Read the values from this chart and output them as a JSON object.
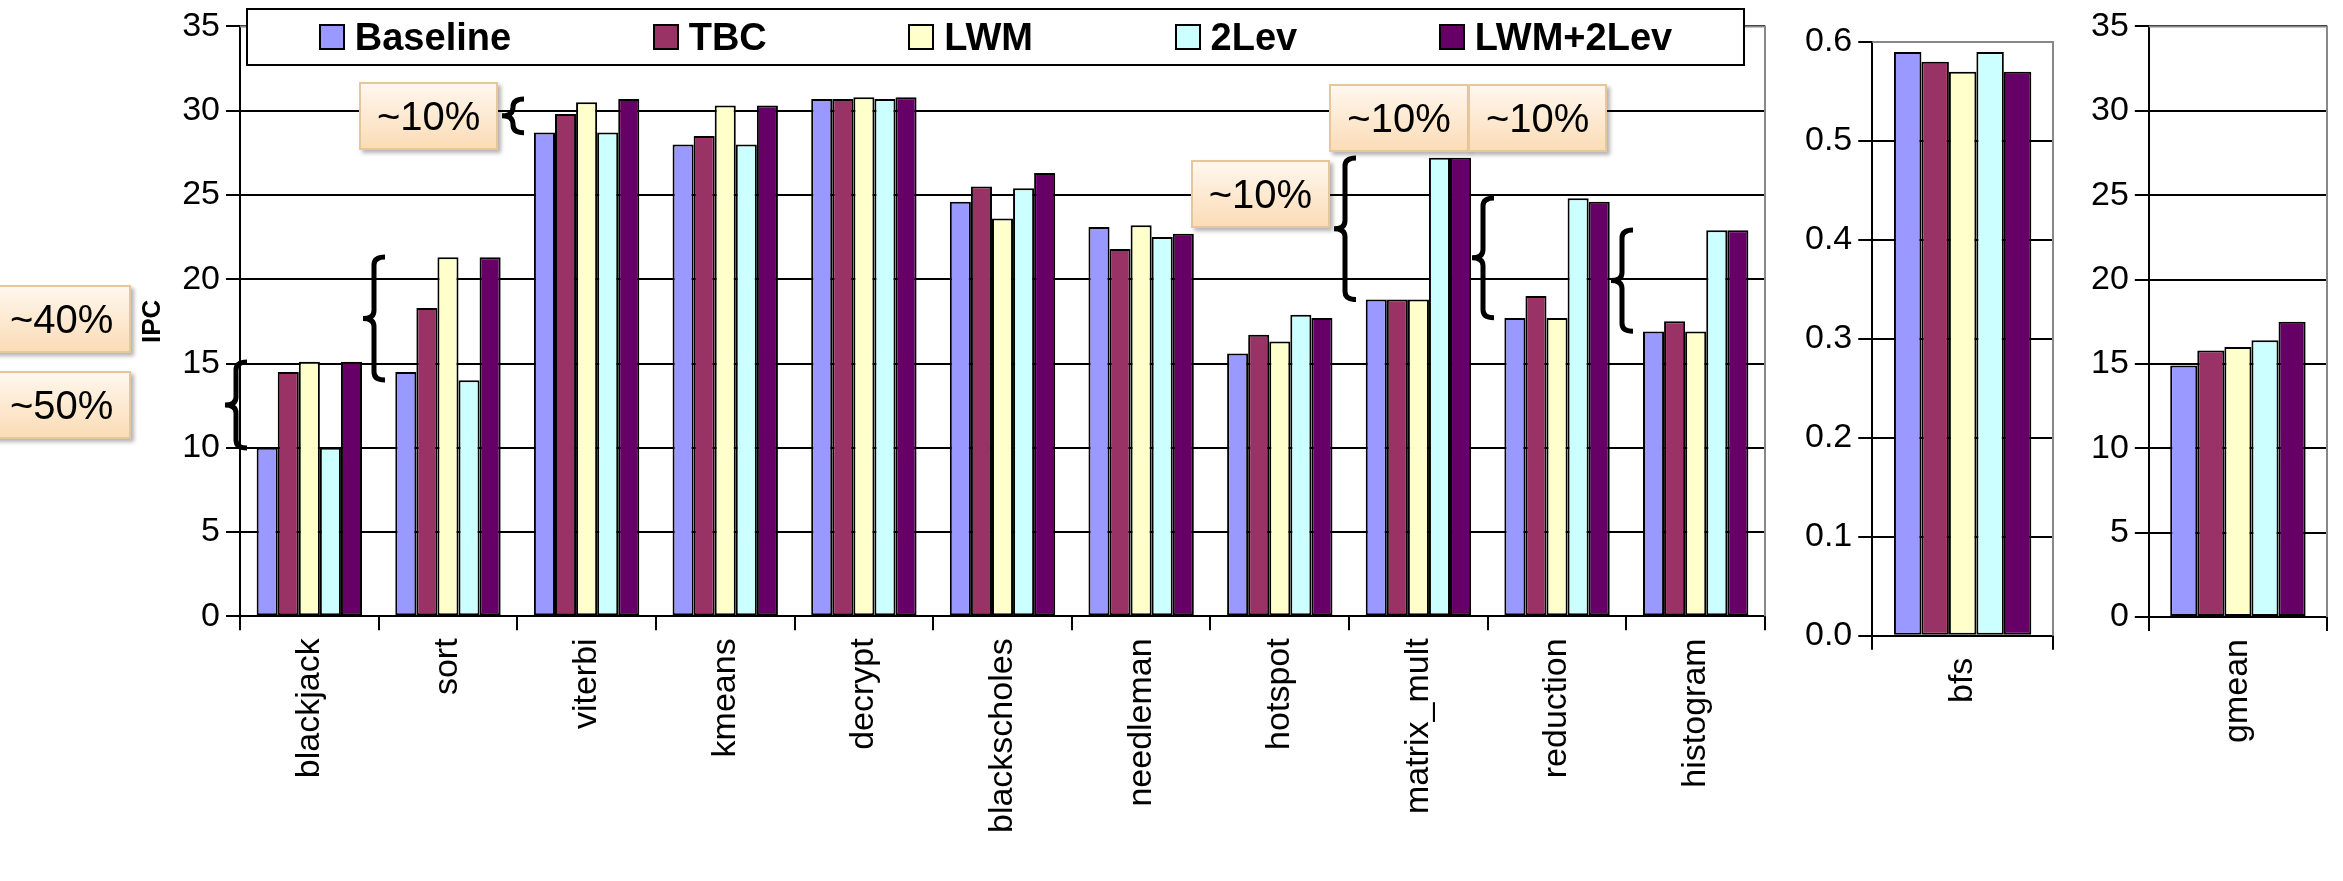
{
  "chart_data": [
    {
      "type": "bar",
      "ylabel": "IPC",
      "categories": [
        "blackjack",
        "sort",
        "viterbi",
        "kmeans",
        "decrypt",
        "blackscholes",
        "needleman",
        "hotspot",
        "matrix_mult",
        "reduction",
        "histogram"
      ],
      "series": [
        {
          "name": "Baseline",
          "color": "#9999ff",
          "values": [
            10.0,
            14.5,
            28.7,
            28.0,
            30.7,
            24.6,
            23.1,
            15.6,
            18.8,
            17.7,
            16.9
          ]
        },
        {
          "name": "TBC",
          "color": "#993366",
          "values": [
            14.5,
            18.3,
            29.8,
            28.5,
            30.7,
            25.5,
            21.8,
            16.7,
            18.8,
            19.0,
            17.5
          ]
        },
        {
          "name": "LWM",
          "color": "#ffffcc",
          "values": [
            15.1,
            21.3,
            30.5,
            30.3,
            30.8,
            23.6,
            23.2,
            16.3,
            18.8,
            17.7,
            16.9
          ]
        },
        {
          "name": "2Lev",
          "color": "#ccffff",
          "values": [
            10.0,
            14.0,
            28.7,
            28.0,
            30.7,
            25.4,
            22.5,
            17.9,
            27.2,
            24.8,
            22.9
          ]
        },
        {
          "name": "LWM+2Lev",
          "color": "#660066",
          "values": [
            15.1,
            21.3,
            30.7,
            30.3,
            30.8,
            26.3,
            22.7,
            17.7,
            27.2,
            24.6,
            22.9
          ]
        }
      ],
      "ylim": [
        0,
        35
      ],
      "yticks": [
        0,
        5,
        10,
        15,
        20,
        25,
        30,
        35
      ],
      "grid": "y",
      "legend": "top",
      "annotations": [
        "~50%",
        "~40%",
        "~10%",
        "~10%",
        "~10%",
        "~10%"
      ]
    },
    {
      "type": "bar",
      "categories": [
        "bfs"
      ],
      "series": [
        {
          "color": "#9999ff",
          "values": [
            0.59
          ]
        },
        {
          "color": "#993366",
          "values": [
            0.58
          ]
        },
        {
          "color": "#ffffcc",
          "values": [
            0.57
          ]
        },
        {
          "color": "#ccffff",
          "values": [
            0.59
          ]
        },
        {
          "color": "#660066",
          "values": [
            0.57
          ]
        }
      ],
      "ylim": [
        0,
        0.6
      ],
      "yticks": [
        {
          "value": 0,
          "label": "0.0"
        },
        0.1,
        0.2,
        0.3,
        0.4,
        0.5,
        0.6
      ],
      "grid": "y"
    },
    {
      "type": "bar",
      "categories": [
        "gmean"
      ],
      "series": [
        {
          "color": "#9999ff",
          "values": [
            14.9
          ]
        },
        {
          "color": "#993366",
          "values": [
            15.8
          ]
        },
        {
          "color": "#ffffcc",
          "values": [
            16.0
          ]
        },
        {
          "color": "#ccffff",
          "values": [
            16.4
          ]
        },
        {
          "color": "#660066",
          "values": [
            17.5
          ]
        }
      ],
      "ylim": [
        0,
        35
      ],
      "yticks": [
        0,
        5,
        10,
        15,
        20,
        25,
        30,
        35
      ],
      "grid": "y"
    }
  ]
}
